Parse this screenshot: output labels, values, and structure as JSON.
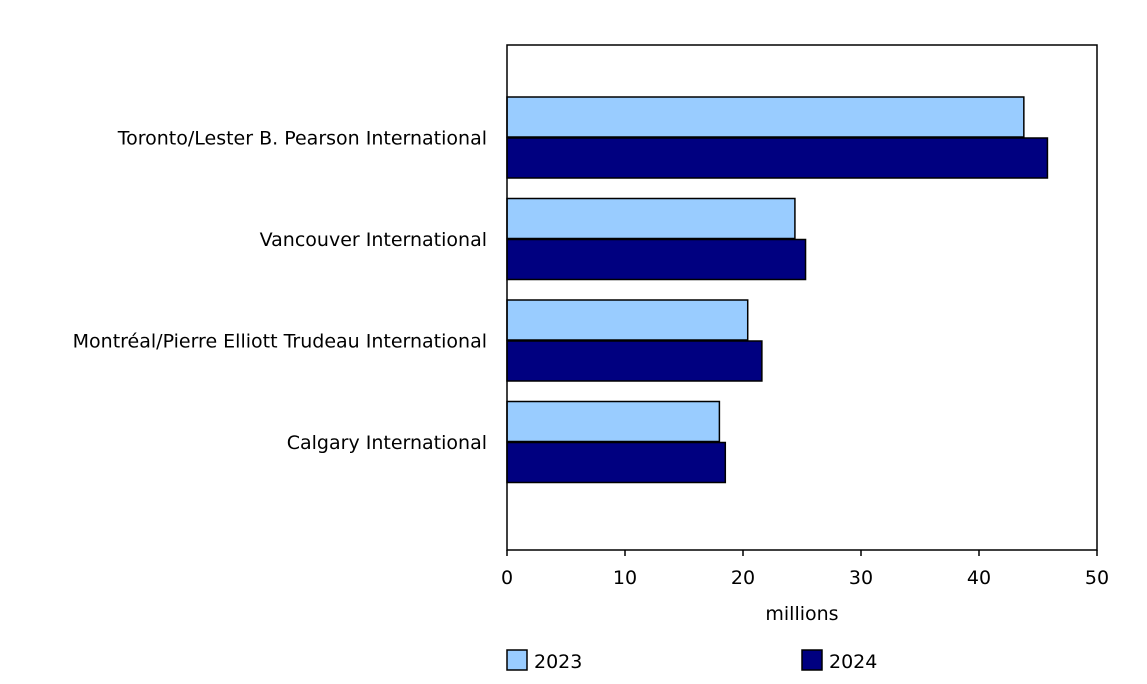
{
  "chart_data": {
    "type": "bar",
    "orientation": "horizontal",
    "categories": [
      "Toronto/Lester B. Pearson International",
      "Vancouver International",
      "Montréal/Pierre Elliott Trudeau International",
      "Calgary International"
    ],
    "series": [
      {
        "name": "2023",
        "color": "#99ccff",
        "values": [
          43.8,
          24.4,
          20.4,
          18.0
        ]
      },
      {
        "name": "2024",
        "color": "#000080",
        "values": [
          45.8,
          25.3,
          21.6,
          18.5
        ]
      }
    ],
    "xlabel": "millions",
    "ylabel": "",
    "xlim": [
      0,
      50
    ],
    "xticks": [
      0,
      10,
      20,
      30,
      40,
      50
    ],
    "grid": false,
    "legend_position": "bottom"
  }
}
